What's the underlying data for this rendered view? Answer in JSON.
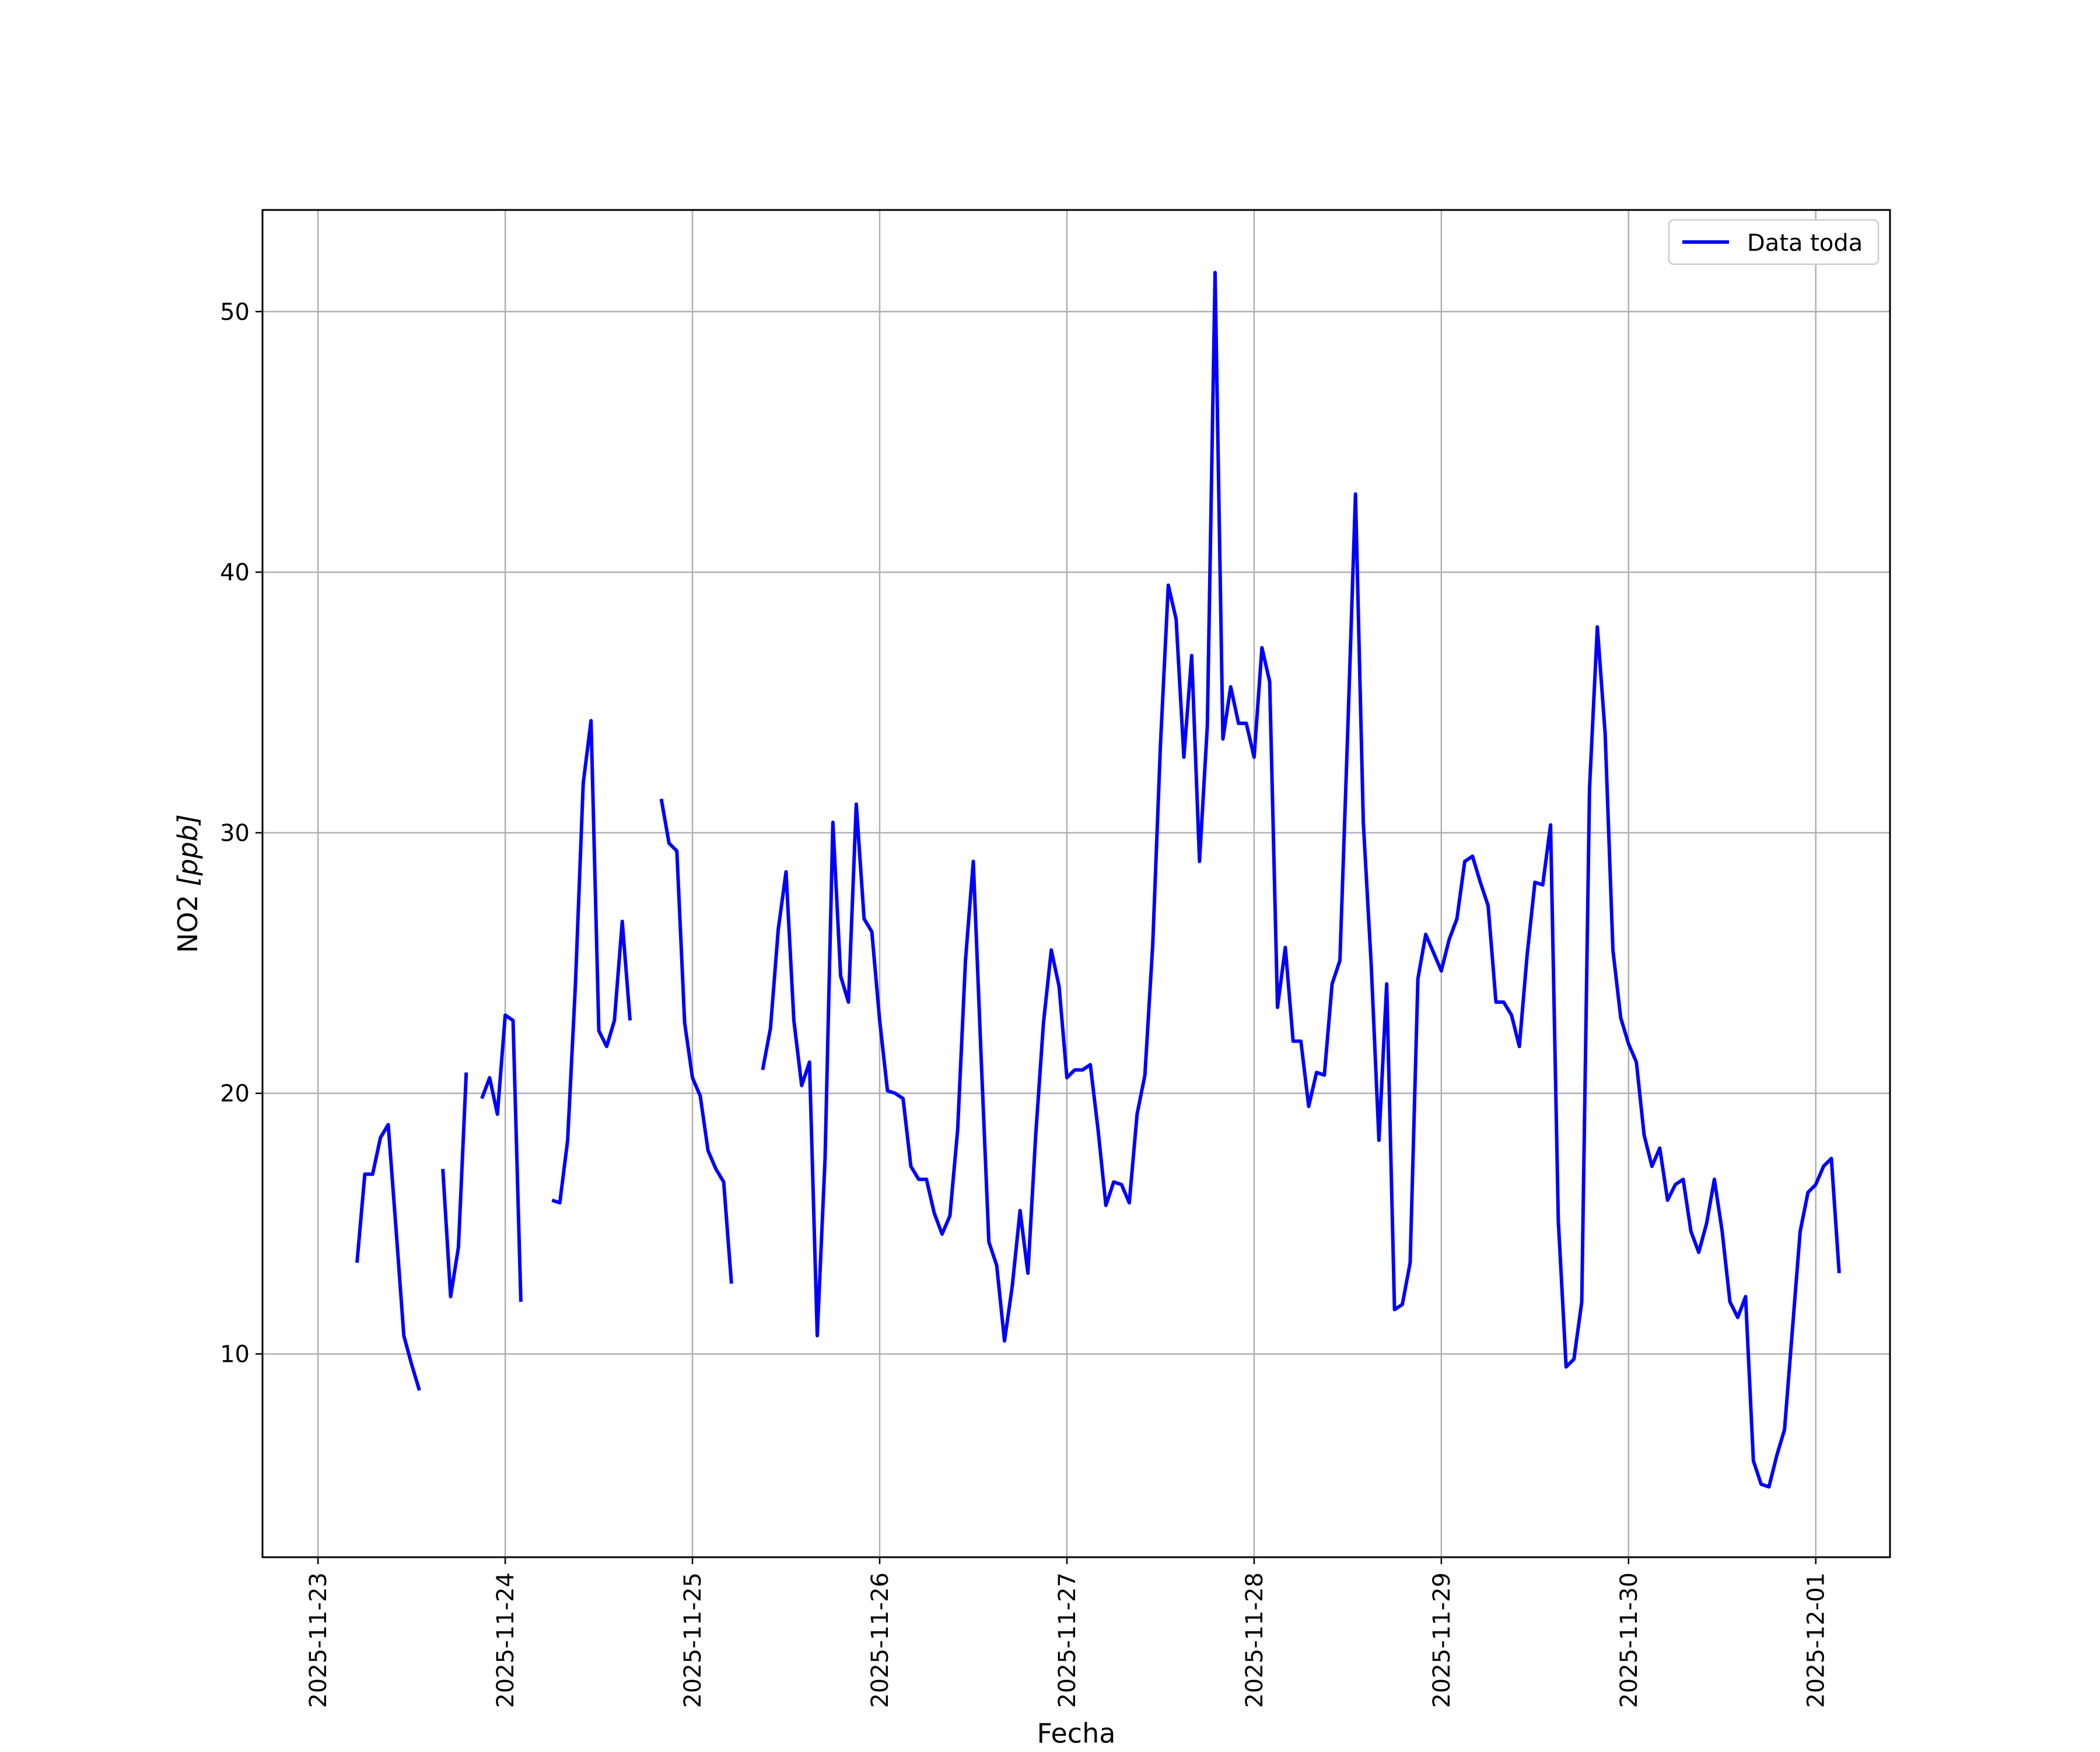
{
  "chart_data": {
    "type": "line",
    "title": "",
    "xlabel": "Fecha",
    "ylabel_main": "NO2 ",
    "ylabel_unit": "[ppb]",
    "xlim": [
      "2025-11-22T16:53",
      "2025-12-01T09:31"
    ],
    "ylim": [
      2.2,
      53.9
    ],
    "grid": true,
    "legend_position": "upper right",
    "x_ticks": [
      "2025-11-23",
      "2025-11-24",
      "2025-11-25",
      "2025-11-26",
      "2025-11-27",
      "2025-11-28",
      "2025-11-29",
      "2025-11-30",
      "2025-12-01"
    ],
    "y_ticks": [
      10,
      20,
      30,
      40,
      50
    ],
    "series": [
      {
        "name": "Data toda",
        "color": "#0000ff",
        "x_start": "2025-11-23T05:00",
        "x_step_hours": 1,
        "values": [
          13.5,
          16.9,
          16.9,
          18.3,
          18.8,
          14.8,
          10.7,
          9.6,
          8.6,
          null,
          null,
          17.1,
          12.2,
          14.1,
          20.8,
          null,
          19.8,
          20.6,
          19.2,
          23.0,
          22.8,
          12.0,
          null,
          null,
          null,
          15.9,
          15.8,
          18.2,
          24.2,
          31.9,
          34.3,
          22.4,
          21.8,
          22.8,
          26.6,
          22.8,
          null,
          null,
          null,
          31.3,
          29.6,
          29.3,
          22.7,
          20.6,
          19.9,
          17.8,
          17.1,
          16.6,
          12.7,
          null,
          null,
          null,
          20.9,
          22.5,
          26.3,
          28.5,
          22.8,
          20.3,
          21.2,
          10.7,
          17.5,
          30.4,
          24.5,
          23.5,
          31.1,
          26.7,
          26.2,
          22.8,
          20.1,
          20.0,
          19.8,
          17.2,
          16.7,
          16.7,
          15.4,
          14.6,
          15.3,
          18.6,
          25.1,
          28.9,
          21.4,
          14.3,
          13.4,
          10.5,
          12.6,
          15.5,
          13.1,
          18.4,
          22.7,
          25.5,
          24.1,
          20.6,
          20.9,
          20.9,
          21.1,
          18.6,
          15.7,
          16.6,
          16.5,
          15.8,
          19.2,
          20.7,
          25.7,
          33.4,
          39.5,
          38.2,
          32.9,
          36.8,
          28.9,
          34.1,
          51.5,
          33.6,
          35.6,
          34.2,
          34.2,
          32.9,
          37.1,
          35.8,
          23.3,
          25.6,
          22.0,
          22.0,
          19.5,
          20.8,
          20.7,
          24.2,
          25.1,
          33.9,
          43.0,
          30.4,
          25.0,
          18.2,
          24.2,
          11.7,
          11.9,
          13.5,
          24.4,
          26.1,
          25.4,
          24.7,
          25.9,
          26.7,
          28.9,
          29.1,
          28.1,
          27.2,
          23.5,
          23.5,
          23.0,
          21.8,
          25.3,
          28.1,
          28.0,
          30.3,
          15.1,
          9.5,
          9.8,
          12.0,
          31.7,
          37.9,
          33.8,
          25.5,
          22.9,
          21.9,
          21.2,
          18.4,
          17.2,
          17.9,
          15.9,
          16.5,
          16.7,
          14.7,
          13.9,
          15.0,
          16.7,
          14.7,
          12.0,
          11.4,
          12.2,
          5.9,
          5.0,
          4.9,
          6.1,
          7.1,
          10.9,
          14.7,
          16.2,
          16.5,
          17.2,
          17.5,
          13.1
        ]
      }
    ]
  }
}
